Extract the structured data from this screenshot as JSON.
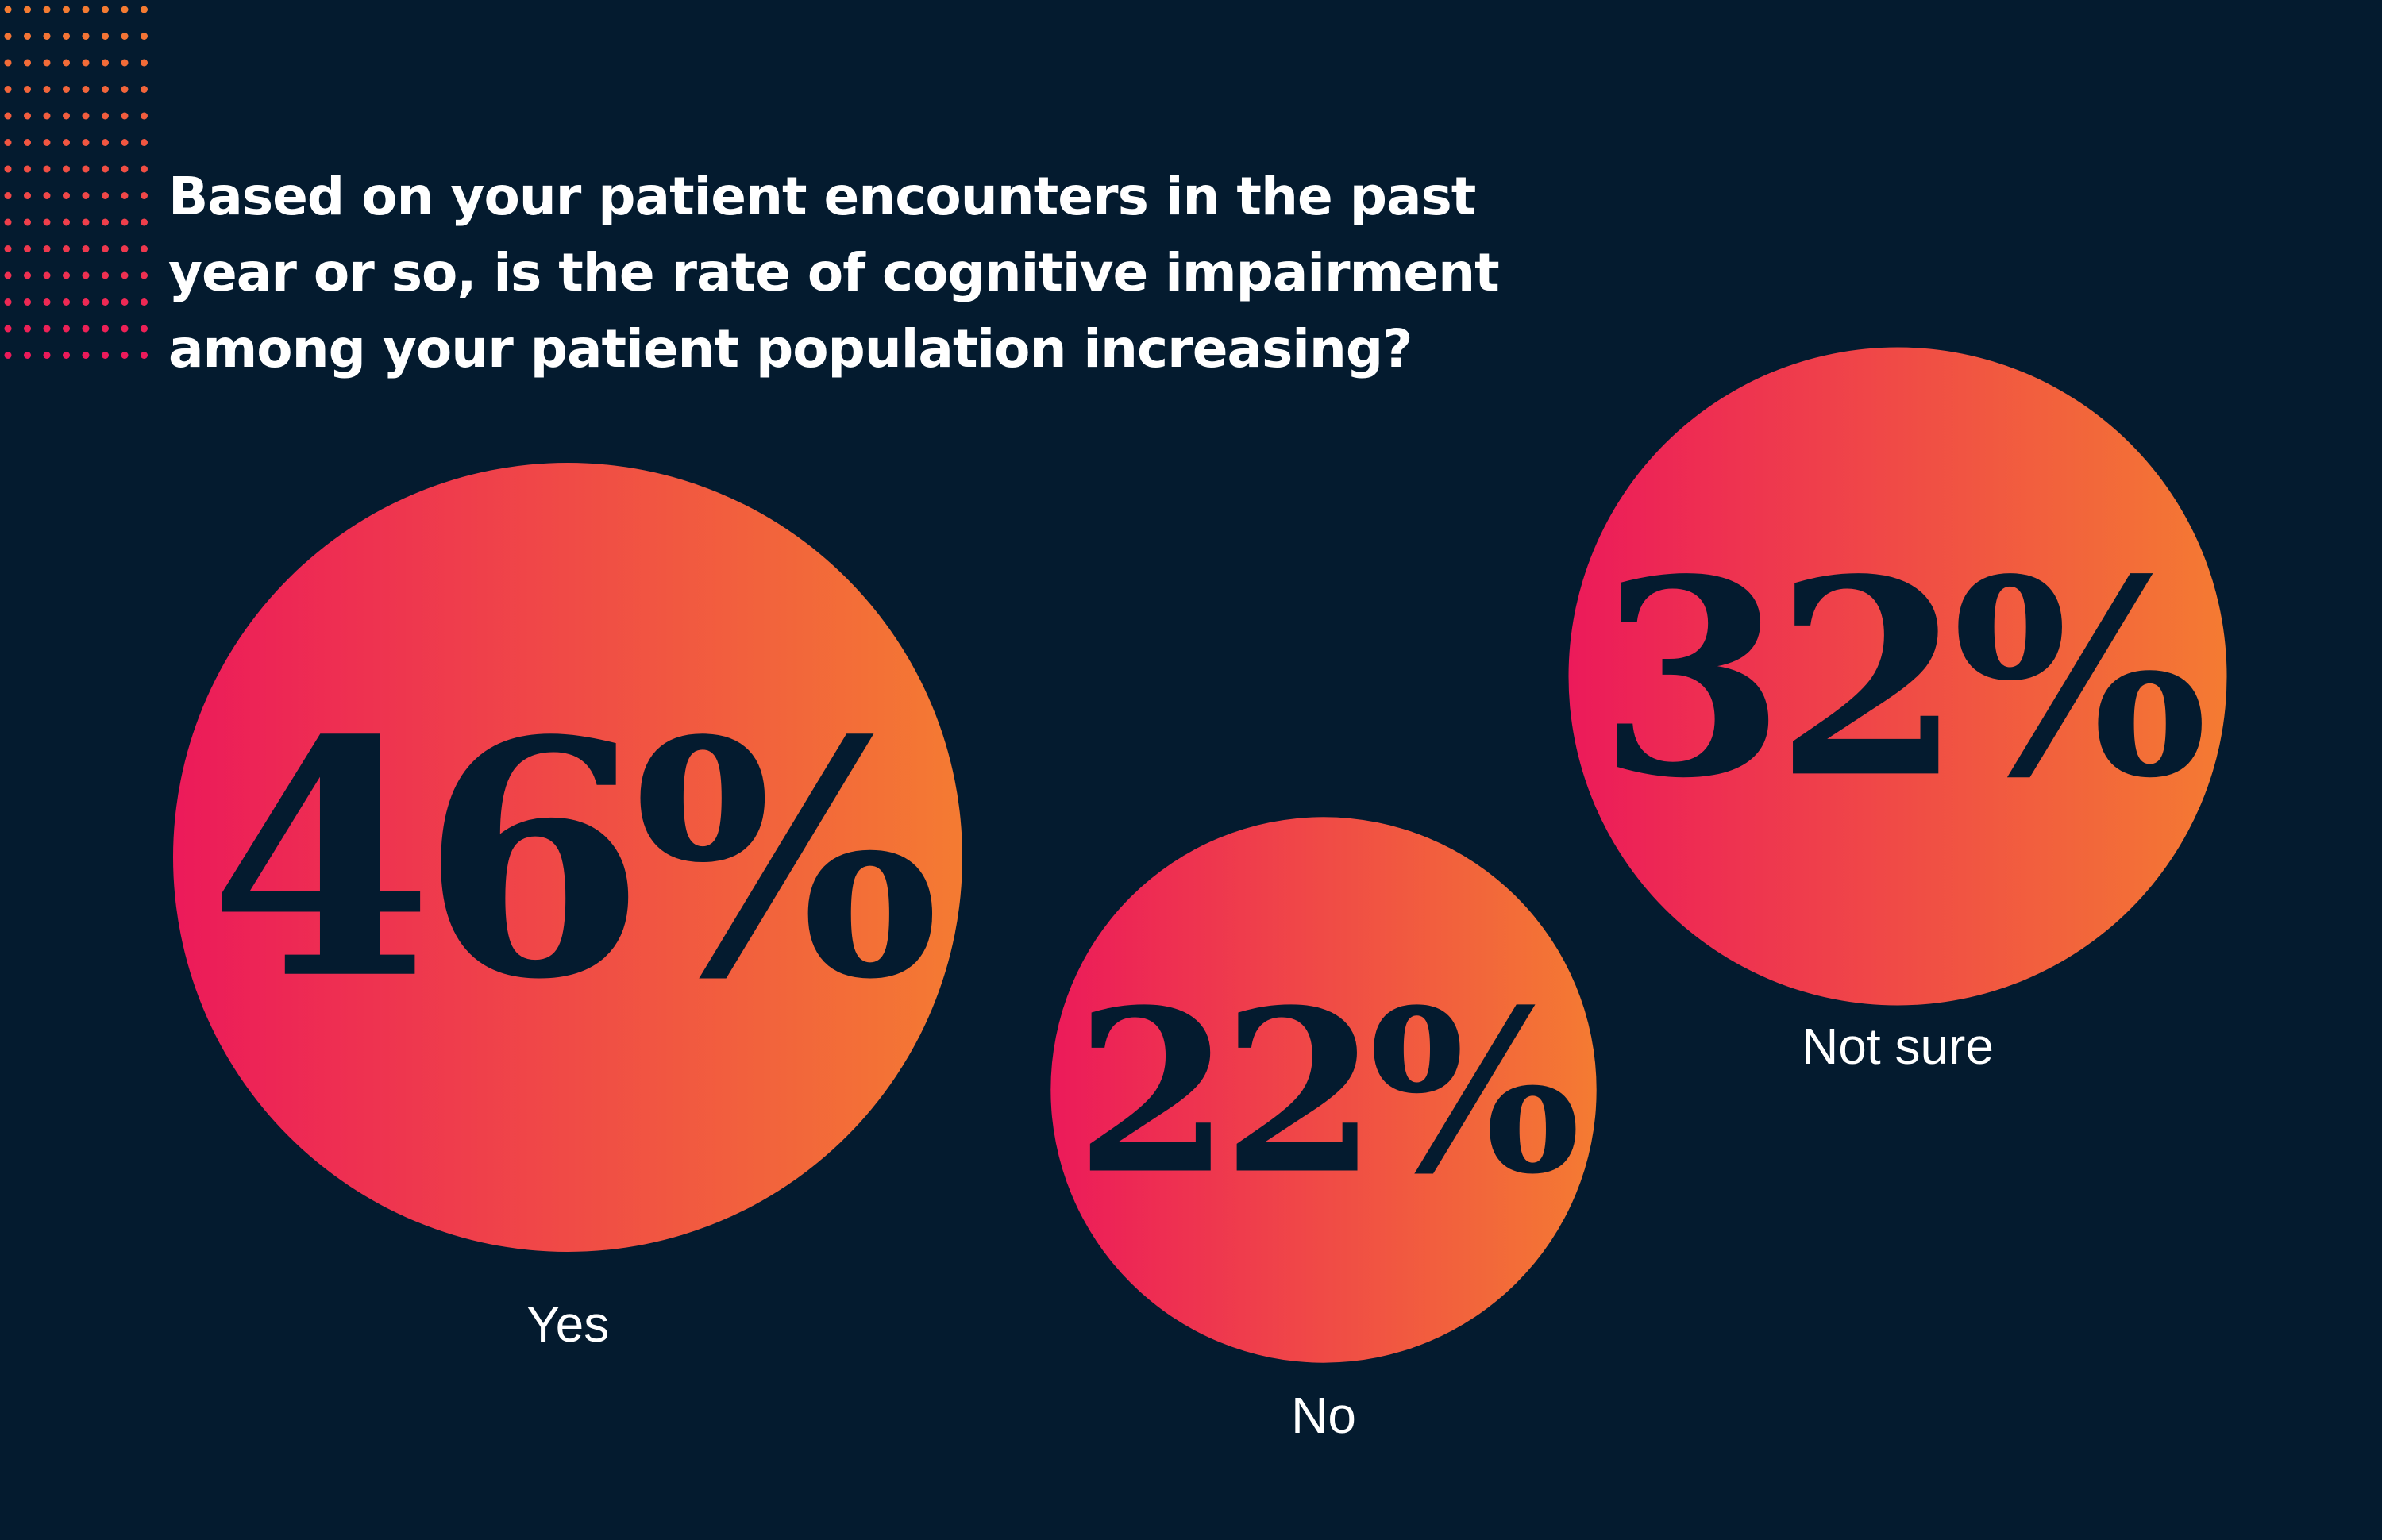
{
  "title_lines": [
    "Based on your patient encounters in the past",
    "year or so, is the rate of cognitive impairment",
    "among your patient population increasing?"
  ],
  "colors": {
    "background": "#041b2f",
    "gradient_start": "#ec1a5a",
    "gradient_end": "#f47b32",
    "value_text": "#041b2f",
    "label_text": "#ffffff"
  },
  "chart_data": {
    "type": "bubble",
    "title": "Based on your patient encounters in the past year or so, is the rate of cognitive impairment among your patient population increasing?",
    "unit": "%",
    "categories": [
      "Yes",
      "No",
      "Not sure"
    ],
    "values": [
      46,
      22,
      32
    ],
    "value_labels": [
      "46%",
      "22%",
      "32%"
    ],
    "legend": "none",
    "grid": false
  }
}
